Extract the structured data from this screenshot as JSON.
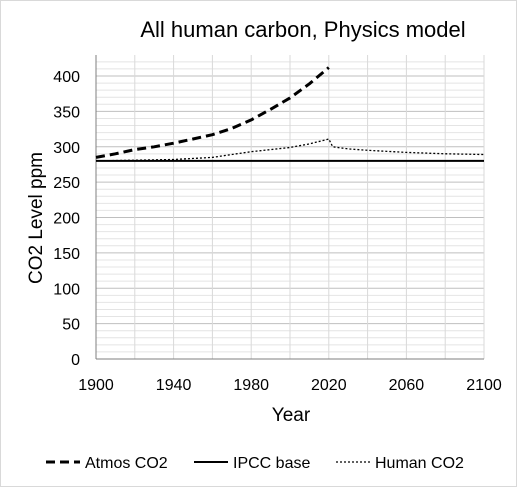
{
  "chart_data": {
    "type": "line",
    "title": "All human carbon, Physics model",
    "xlabel": "Year",
    "ylabel": "CO2 Level ppm",
    "xlim": [
      1900,
      2100
    ],
    "ylim": [
      0,
      420
    ],
    "x_ticks": [
      "1900",
      "1940",
      "1980",
      "2020",
      "2060",
      "2100"
    ],
    "y_ticks": [
      "0",
      "50",
      "100",
      "150",
      "200",
      "250",
      "300",
      "350",
      "400"
    ],
    "grid": true,
    "legend_position": "bottom",
    "series": [
      {
        "name": "Atmos CO2",
        "style": "dashed",
        "color": "#000000",
        "x": [
          1900,
          1910,
          1920,
          1930,
          1940,
          1950,
          1960,
          1970,
          1980,
          1990,
          2000,
          2010,
          2020
        ],
        "y": [
          285,
          290,
          296,
          300,
          305,
          311,
          317,
          326,
          338,
          353,
          369,
          389,
          412
        ]
      },
      {
        "name": "IPCC base",
        "style": "solid",
        "color": "#000000",
        "x": [
          1900,
          2100
        ],
        "y": [
          280,
          280
        ]
      },
      {
        "name": "Human CO2",
        "style": "dotted",
        "color": "#000000",
        "x": [
          1900,
          1920,
          1940,
          1960,
          1970,
          1980,
          1990,
          2000,
          2010,
          2020,
          2022,
          2030,
          2040,
          2060,
          2080,
          2100
        ],
        "y": [
          280,
          281,
          282,
          285,
          289,
          293,
          296,
          299,
          304,
          311,
          300,
          297,
          295,
          292,
          290,
          289
        ]
      }
    ]
  }
}
